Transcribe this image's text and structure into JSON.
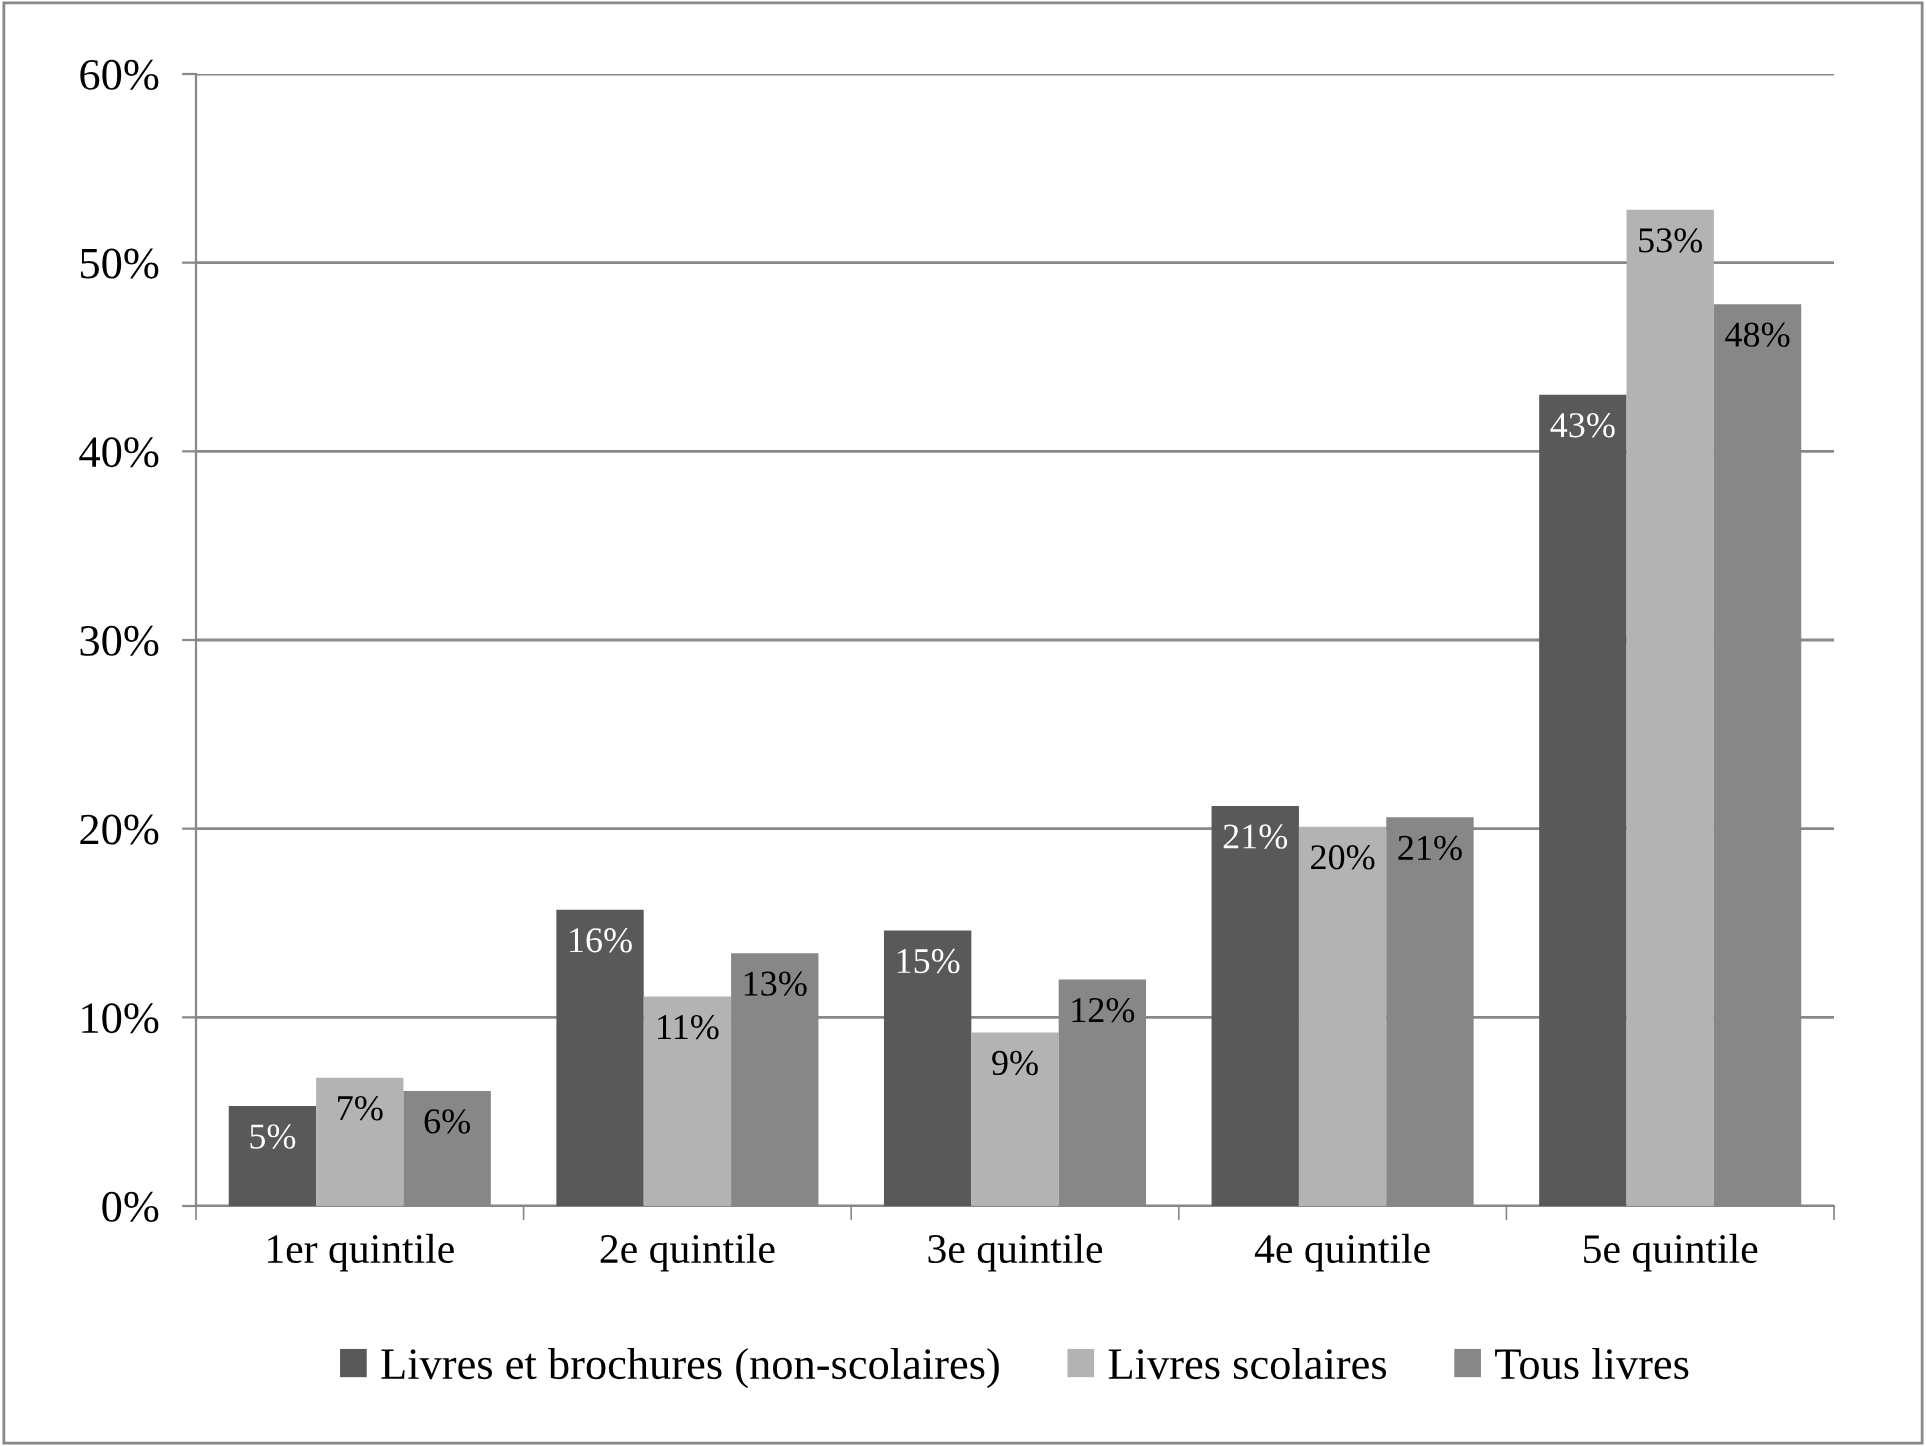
{
  "chart_data": {
    "type": "bar",
    "categories": [
      "1er quintile",
      "2e quintile",
      "3e quintile",
      "4e quintile",
      "5e quintile"
    ],
    "series": [
      {
        "name": "Livres et brochures (non-scolaires)",
        "color": "#595959",
        "values": [
          5.3,
          15.7,
          14.6,
          21.2,
          43.0
        ],
        "value_labels": [
          "5%",
          "16%",
          "15%",
          "21%",
          "43%"
        ]
      },
      {
        "name": "Livres scolaires",
        "color": "#b3b3b3",
        "values": [
          6.8,
          11.1,
          9.2,
          20.1,
          52.8
        ],
        "value_labels": [
          "7%",
          "11%",
          "9%",
          "20%",
          "53%"
        ]
      },
      {
        "name": "Tous livres",
        "color": "#878787",
        "values": [
          6.1,
          13.4,
          12.0,
          20.6,
          47.8
        ],
        "value_labels": [
          "6%",
          "13%",
          "12%",
          "21%",
          "48%"
        ]
      }
    ],
    "ylim": [
      0,
      60
    ],
    "yticks": [
      {
        "value": 0,
        "label": "0%"
      },
      {
        "value": 10,
        "label": "10%"
      },
      {
        "value": 20,
        "label": "20%"
      },
      {
        "value": 30,
        "label": "30%"
      },
      {
        "value": 40,
        "label": "40%"
      },
      {
        "value": 50,
        "label": "50%"
      },
      {
        "value": 60,
        "label": "60%"
      }
    ],
    "grid": "y",
    "legend": "bottom"
  }
}
